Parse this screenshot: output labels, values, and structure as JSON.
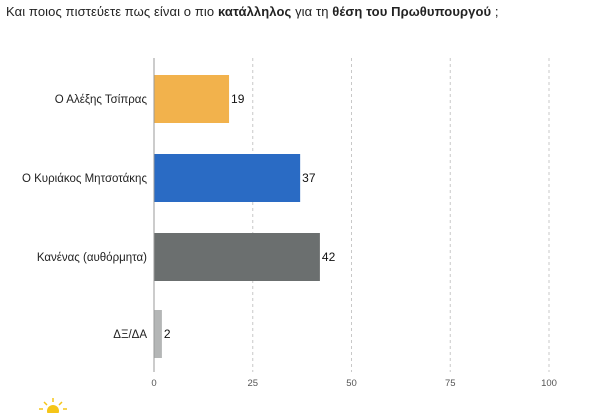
{
  "title": {
    "part1": "Και ποιος πιστεύετε πως είναι ο πιο ",
    "bold1": "κατάλληλος",
    "part2": " για τη ",
    "bold2": "θέση του Πρωθυπουργού",
    "part3": " ;"
  },
  "chart_data": {
    "type": "bar",
    "orientation": "horizontal",
    "categories": [
      "Ο Αλέξης Τσίπρας",
      "Ο Κυριάκος Μητσοτάκης",
      "Κανένας (αυθόρμητα)",
      "ΔΞ/ΔΑ"
    ],
    "values": [
      19,
      37,
      42,
      2
    ],
    "colors": [
      "#f2b24c",
      "#2a6bc4",
      "#6b6f6f",
      "#b4b6b6"
    ],
    "xlim": [
      0,
      100
    ],
    "xticks": [
      0,
      25,
      50,
      75,
      100
    ],
    "grid": "vertical-dashed"
  },
  "colors": {
    "axis": "#999999",
    "grid": "#c8c8c8",
    "logo": "#f5c518"
  }
}
